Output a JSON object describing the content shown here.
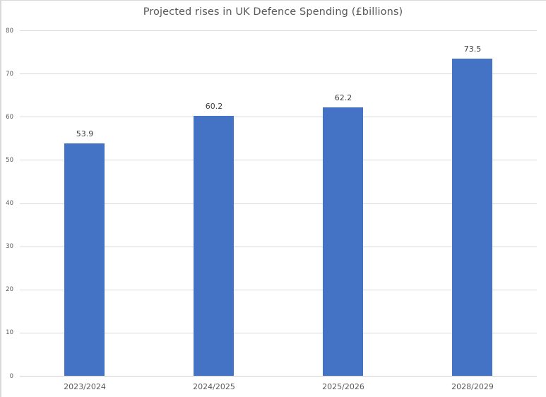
{
  "chart_data": {
    "type": "bar",
    "title": "Projected rises in UK Defence Spending (£billions)",
    "categories": [
      "2023/2024",
      "2024/2025",
      "2025/2026",
      "2028/2029"
    ],
    "values": [
      53.9,
      60.2,
      62.2,
      73.5
    ],
    "data_labels": [
      "53.9",
      "60.2",
      "62.2",
      "73.5"
    ],
    "xlabel": "",
    "ylabel": "",
    "ylim": [
      0,
      80
    ],
    "yticks": [
      0,
      10,
      20,
      30,
      40,
      50,
      60,
      70,
      80
    ],
    "grid": true,
    "legend": "none",
    "bar_color": "#4472c4"
  }
}
